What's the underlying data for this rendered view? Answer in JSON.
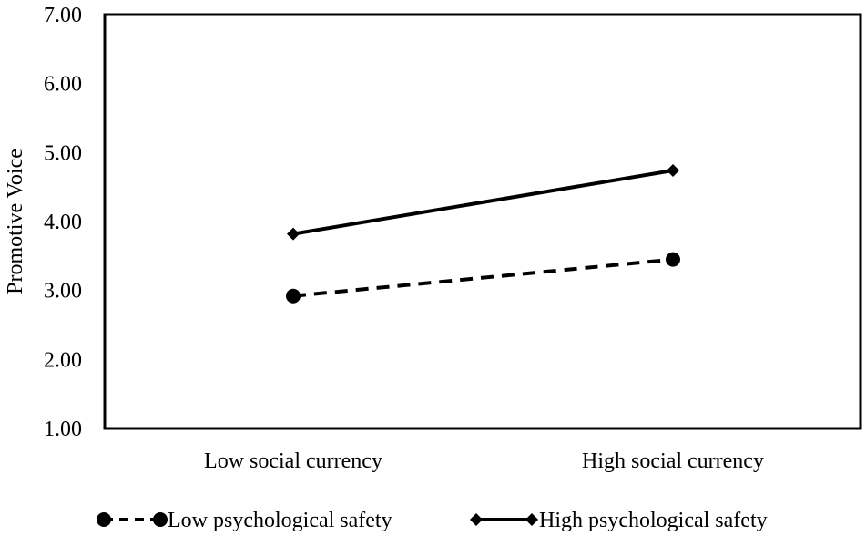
{
  "chart_data": {
    "type": "line",
    "title": "",
    "xlabel": "",
    "ylabel": "Promotive Voice",
    "categories": [
      "Low social currency",
      "High social currency"
    ],
    "ylim": [
      1.0,
      7.0
    ],
    "yticks": [
      "1.00",
      "2.00",
      "3.00",
      "4.00",
      "5.00",
      "6.00",
      "7.00"
    ],
    "grid": false,
    "legend_position": "bottom",
    "series": [
      {
        "name": "Low psychological safety",
        "values": [
          2.92,
          3.45
        ],
        "marker": "circle",
        "line_style": "dashed",
        "color": "#000000"
      },
      {
        "name": "High psychological safety",
        "values": [
          3.82,
          4.74
        ],
        "marker": "diamond",
        "line_style": "solid",
        "color": "#000000"
      }
    ]
  }
}
